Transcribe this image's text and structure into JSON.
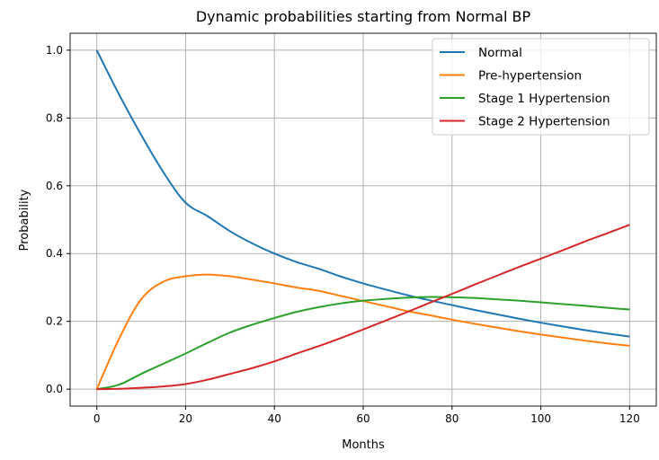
{
  "chart_data": {
    "type": "line",
    "title": "Dynamic probabilities starting from Normal BP",
    "xlabel": "Months",
    "ylabel": "Probability",
    "xlim": [
      -6,
      126
    ],
    "ylim": [
      -0.05,
      1.05
    ],
    "xticks": [
      0,
      20,
      40,
      60,
      80,
      100,
      120
    ],
    "yticks": [
      0.0,
      0.2,
      0.4,
      0.6,
      0.8,
      1.0
    ],
    "xtick_labels": [
      "0",
      "20",
      "40",
      "60",
      "80",
      "100",
      "120"
    ],
    "ytick_labels": [
      "0.0",
      "0.2",
      "0.4",
      "0.6",
      "0.8",
      "1.0"
    ],
    "grid": true,
    "legend_position": "top-right",
    "x": [
      0,
      5,
      10,
      15,
      20,
      25,
      30,
      35,
      40,
      45,
      50,
      55,
      60,
      65,
      70,
      75,
      80,
      85,
      90,
      95,
      100,
      105,
      110,
      115,
      120
    ],
    "series": [
      {
        "name": "Normal",
        "color": "#1f77b4",
        "values": [
          1.0,
          0.87,
          0.75,
          0.64,
          0.55,
          0.51,
          0.466,
          0.43,
          0.4,
          0.375,
          0.355,
          0.332,
          0.312,
          0.294,
          0.277,
          0.262,
          0.248,
          0.234,
          0.221,
          0.208,
          0.196,
          0.185,
          0.174,
          0.164,
          0.155
        ]
      },
      {
        "name": "Pre-hypertension",
        "color": "#ff7f0e",
        "values": [
          0,
          0.148,
          0.265,
          0.317,
          0.333,
          0.338,
          0.333,
          0.323,
          0.312,
          0.3,
          0.29,
          0.275,
          0.26,
          0.245,
          0.23,
          0.218,
          0.205,
          0.193,
          0.182,
          0.171,
          0.161,
          0.152,
          0.143,
          0.135,
          0.128
        ]
      },
      {
        "name": "Stage 1 Hypertension",
        "color": "#2ca02c",
        "values": [
          0,
          0.013,
          0.045,
          0.075,
          0.105,
          0.137,
          0.167,
          0.19,
          0.21,
          0.228,
          0.242,
          0.253,
          0.261,
          0.266,
          0.27,
          0.272,
          0.271,
          0.269,
          0.265,
          0.261,
          0.256,
          0.251,
          0.246,
          0.24,
          0.235
        ]
      },
      {
        "name": "Stage 2 Hypertension",
        "color": "#d62728",
        "values": [
          0,
          0.001,
          0.004,
          0.008,
          0.015,
          0.028,
          0.045,
          0.062,
          0.082,
          0.105,
          0.127,
          0.151,
          0.176,
          0.202,
          0.228,
          0.255,
          0.281,
          0.308,
          0.334,
          0.36,
          0.385,
          0.41,
          0.436,
          0.46,
          0.485
        ]
      }
    ]
  }
}
